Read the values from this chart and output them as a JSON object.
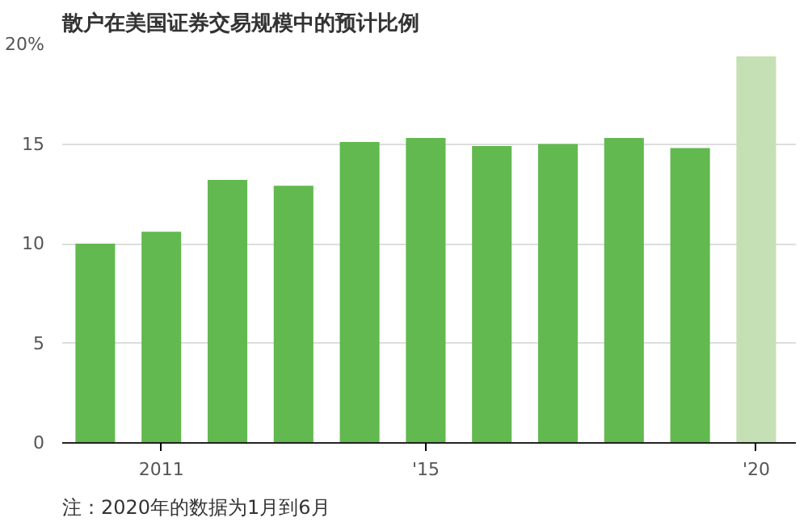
{
  "chart_data": {
    "type": "bar",
    "title": "散户在美国证券交易规模中的预计比例",
    "x": [
      2010,
      2011,
      2012,
      2013,
      2014,
      2015,
      2016,
      2017,
      2018,
      2019,
      2020
    ],
    "values": [
      10.0,
      10.6,
      13.2,
      12.9,
      15.1,
      15.3,
      14.9,
      15.0,
      15.3,
      14.8,
      19.4
    ],
    "colors": [
      "#62b94f",
      "#62b94f",
      "#62b94f",
      "#62b94f",
      "#62b94f",
      "#62b94f",
      "#62b94f",
      "#62b94f",
      "#62b94f",
      "#62b94f",
      "#c5e0b4"
    ],
    "xlim": [
      2009.5,
      2020.6
    ],
    "xticks": [
      {
        "value": 2011,
        "label": "2011"
      },
      {
        "value": 2015,
        "label": "'15"
      },
      {
        "value": 2020,
        "label": "'20"
      }
    ],
    "ylim": [
      0,
      20
    ],
    "yticks": [
      0,
      5,
      10,
      15,
      {
        "value": 20,
        "label": "20%"
      }
    ],
    "grid": "y",
    "annotations": [
      "注：2020年的数据为1月到6月"
    ]
  }
}
